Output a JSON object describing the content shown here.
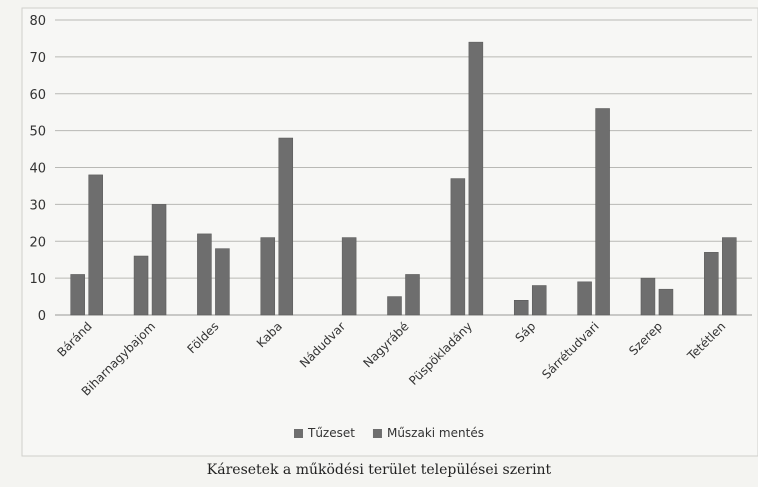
{
  "chart_data": {
    "type": "bar",
    "categories": [
      "Báránd",
      "Biharnagybajom",
      "Földes",
      "Kaba",
      "Nádudvar",
      "Nagyrábé",
      "Püspökladány",
      "Sáp",
      "Sárrétudvari",
      "Szerep",
      "Tetétlen"
    ],
    "series": [
      {
        "name": "Tűzeset",
        "values": [
          11,
          16,
          22,
          21,
          0,
          5,
          37,
          4,
          9,
          10,
          17
        ],
        "color": "#6e6e6e"
      },
      {
        "name": "Műszaki mentés",
        "values": [
          38,
          30,
          18,
          48,
          21,
          11,
          74,
          8,
          56,
          7,
          21
        ],
        "color": "#6e6e6e"
      }
    ],
    "ylim": [
      0,
      80
    ],
    "yticks": [
      0,
      10,
      20,
      30,
      40,
      50,
      60,
      70,
      80
    ],
    "grid": true,
    "legend": "bottom",
    "caption": "Káresetek a működési terület települései szerint"
  }
}
